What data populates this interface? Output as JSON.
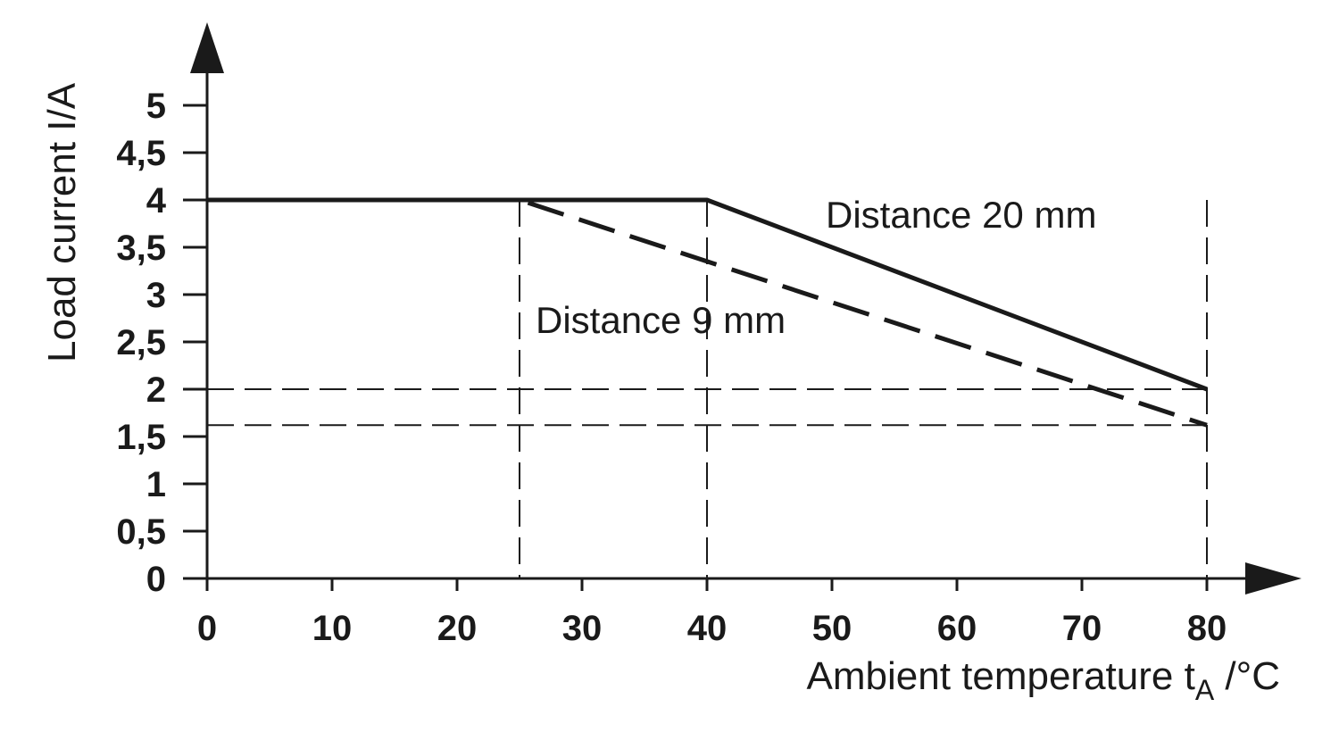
{
  "chart_data": {
    "type": "line",
    "xlabel": "Ambient temperature t",
    "xlabel_sub": "A",
    "xlabel_unit": " /°C",
    "ylabel": "Load current I/A",
    "xlim": [
      0,
      80
    ],
    "ylim": [
      0,
      5
    ],
    "x_ticks": [
      0,
      10,
      20,
      30,
      40,
      50,
      60,
      70,
      80
    ],
    "x_tick_labels": [
      "0",
      "10",
      "20",
      "30",
      "40",
      "50",
      "60",
      "70",
      "80"
    ],
    "y_ticks": [
      0,
      0.5,
      1,
      1.5,
      2,
      2.5,
      3,
      3.5,
      4,
      4.5,
      5
    ],
    "y_tick_labels": [
      "0",
      "0,5",
      "1",
      "1,5",
      "2",
      "2,5",
      "3",
      "3,5",
      "4",
      "4,5",
      "5"
    ],
    "series": [
      {
        "name": "Distance 20 mm",
        "style": "solid",
        "color": "#1a1a1a",
        "x": [
          0,
          40,
          80
        ],
        "y": [
          4,
          4,
          2
        ]
      },
      {
        "name": "Distance 9 mm",
        "style": "dashed",
        "color": "#1a1a1a",
        "x": [
          0,
          25,
          80
        ],
        "y": [
          4,
          4,
          1.62
        ]
      }
    ],
    "reference_lines": {
      "vertical_x": [
        25,
        40,
        80
      ],
      "horizontal_y": [
        2,
        1.62
      ]
    },
    "grid": false
  }
}
